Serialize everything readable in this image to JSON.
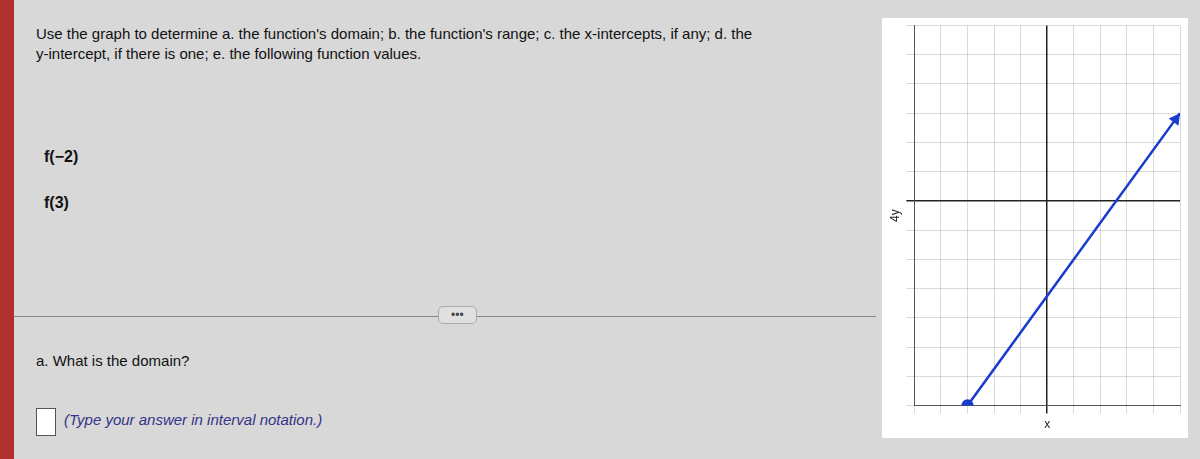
{
  "chart_data": {
    "type": "line",
    "title": "Use the graph to determine a. the function's domain; b. the function's range; c. the x-intercepts, if any; d. the\ny-intercept, if there is one; e. the following function values.",
    "x_label": "x",
    "y_label": "4y",
    "annotations": [
      "f(−2)",
      "f(3)",
      "•••",
      "a. What is the domain?",
      "(Type your answer in interval notation.)"
    ],
    "x": [
      -3,
      5
    ],
    "values": [
      -7,
      3
    ],
    "color": "#1a3bcc",
    "xlim": [
      -5,
      5
    ],
    "xticks": [
      -5,
      -4,
      -3,
      -2,
      -1,
      0,
      1,
      2,
      3,
      4,
      5
    ],
    "ylim": [
      -7,
      6
    ],
    "yticks": [
      -7,
      -6,
      -5,
      -4,
      -3,
      -2,
      -1,
      0,
      1,
      2,
      3,
      4,
      5,
      6
    ],
    "grid": true,
    "tick_labels": false
  }
}
